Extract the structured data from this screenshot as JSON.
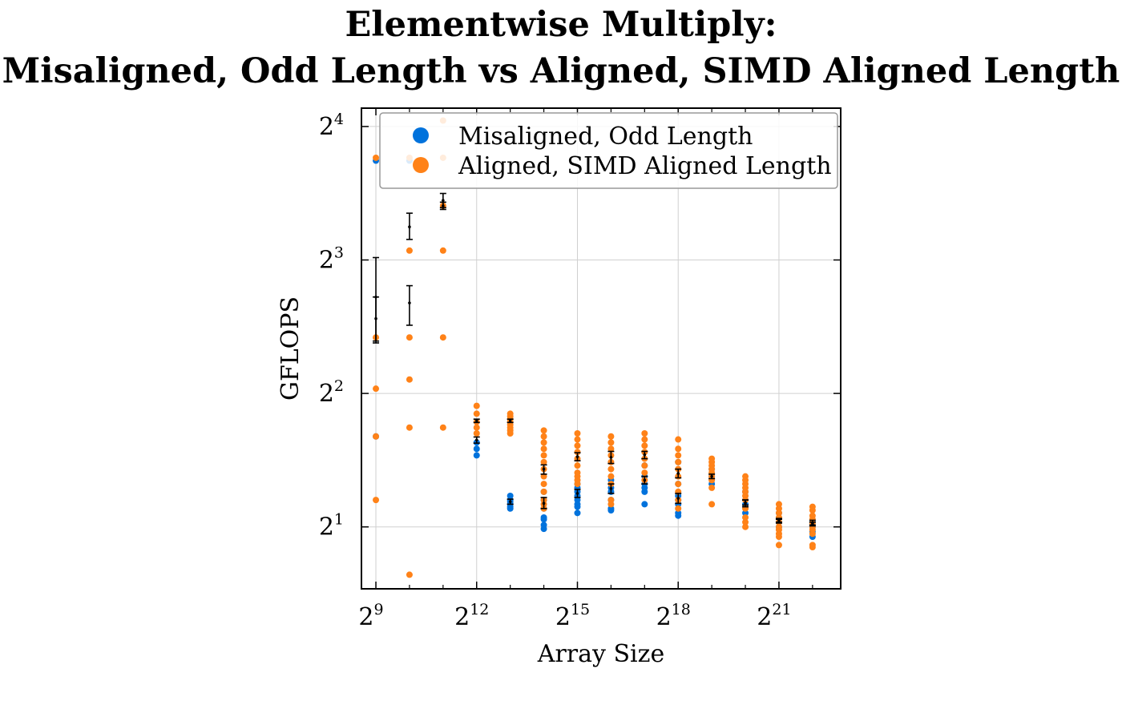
{
  "chart_data": {
    "type": "scatter",
    "title_line1": "Elementwise Multiply:",
    "title_line2": "Misaligned, Odd Length vs Aligned, SIMD Aligned Length",
    "xlabel": "Array Size",
    "ylabel": "GFLOPS",
    "x_scale": "log2",
    "y_scale": "log2",
    "xlim": [
      380,
      7500000
    ],
    "ylim": [
      1.45,
      17.6
    ],
    "grid": true,
    "legend_position": "top-right",
    "x_ticks": [
      {
        "value": 512,
        "base": "2",
        "exp": "9"
      },
      {
        "value": 4096,
        "base": "2",
        "exp": "12"
      },
      {
        "value": 32768,
        "base": "2",
        "exp": "15"
      },
      {
        "value": 262144,
        "base": "2",
        "exp": "18"
      },
      {
        "value": 2097152,
        "base": "2",
        "exp": "21"
      }
    ],
    "y_ticks": [
      {
        "value": 2,
        "base": "2",
        "exp": "1"
      },
      {
        "value": 4,
        "base": "2",
        "exp": "2"
      },
      {
        "value": 8,
        "base": "2",
        "exp": "3"
      },
      {
        "value": 16,
        "base": "2",
        "exp": "4"
      }
    ],
    "x_minor_ticks": [
      1024,
      2048,
      8192,
      16384,
      65536,
      131072,
      524288,
      1048576,
      4194304
    ],
    "series": [
      {
        "name": "Misaligned, Odd Length",
        "color": "#0072DC",
        "points": [
          [
            512,
            13.4
          ],
          [
            512,
            3.2
          ],
          [
            1024,
            13.4
          ],
          [
            4096,
            3.1
          ],
          [
            4096,
            3.0
          ],
          [
            4096,
            2.9
          ],
          [
            8192,
            2.35
          ],
          [
            8192,
            2.3
          ],
          [
            8192,
            2.28
          ],
          [
            8192,
            2.25
          ],
          [
            8192,
            2.22
          ],
          [
            8192,
            2.2
          ],
          [
            16384,
            2.4
          ],
          [
            16384,
            2.3
          ],
          [
            16384,
            2.2
          ],
          [
            16384,
            2.1
          ],
          [
            16384,
            2.08
          ],
          [
            16384,
            2.02
          ],
          [
            16384,
            1.98
          ],
          [
            32768,
            2.5
          ],
          [
            32768,
            2.45
          ],
          [
            32768,
            2.4
          ],
          [
            32768,
            2.35
          ],
          [
            32768,
            2.3
          ],
          [
            32768,
            2.25
          ],
          [
            32768,
            2.22
          ],
          [
            32768,
            2.15
          ],
          [
            65536,
            2.55
          ],
          [
            65536,
            2.45
          ],
          [
            65536,
            2.4
          ],
          [
            65536,
            2.3
          ],
          [
            65536,
            2.2
          ],
          [
            65536,
            2.18
          ],
          [
            131072,
            2.75
          ],
          [
            131072,
            2.6
          ],
          [
            131072,
            2.5
          ],
          [
            131072,
            2.45
          ],
          [
            131072,
            2.4
          ],
          [
            131072,
            2.25
          ],
          [
            262144,
            2.8
          ],
          [
            262144,
            2.5
          ],
          [
            262144,
            2.35
          ],
          [
            262144,
            2.3
          ],
          [
            262144,
            2.25
          ],
          [
            262144,
            2.15
          ],
          [
            262144,
            2.12
          ],
          [
            524288,
            2.7
          ],
          [
            524288,
            2.6
          ],
          [
            524288,
            2.5
          ],
          [
            1048576,
            2.4
          ],
          [
            1048576,
            2.3
          ],
          [
            1048576,
            2.25
          ],
          [
            1048576,
            2.15
          ],
          [
            2097152,
            2.15
          ],
          [
            2097152,
            2.05
          ],
          [
            2097152,
            2.0
          ],
          [
            4194304,
            2.05
          ],
          [
            4194304,
            2.0
          ],
          [
            4194304,
            1.95
          ],
          [
            4194304,
            1.9
          ]
        ],
        "error_bars": [
          [
            512,
            6.6,
            5.2,
            8.1
          ],
          [
            1024,
            6.4,
            5.7,
            7.0
          ],
          [
            2048,
            10.9,
            10.5,
            11.3
          ],
          [
            4096,
            3.14,
            3.09,
            3.19
          ],
          [
            8192,
            2.28,
            2.25,
            2.31
          ],
          [
            16384,
            2.26,
            2.2,
            2.33
          ],
          [
            32768,
            2.38,
            2.33,
            2.43
          ],
          [
            65536,
            2.44,
            2.38,
            2.5
          ],
          [
            131072,
            2.55,
            2.5,
            2.6
          ],
          [
            262144,
            2.32,
            2.26,
            2.38
          ],
          [
            1048576,
            2.26,
            2.22,
            2.3
          ],
          [
            2097152,
            2.06,
            2.04,
            2.08
          ],
          [
            4194304,
            2.04,
            2.02,
            2.07
          ]
        ]
      },
      {
        "name": "Aligned, SIMD Aligned Length",
        "color": "#FF8218",
        "points": [
          [
            512,
            13.6
          ],
          [
            512,
            5.35
          ],
          [
            512,
            3.2
          ],
          [
            512,
            2.3
          ],
          [
            512,
            4.1
          ],
          [
            1024,
            13.6
          ],
          [
            1024,
            8.4
          ],
          [
            1024,
            5.35
          ],
          [
            1024,
            4.3
          ],
          [
            1024,
            3.35
          ],
          [
            1024,
            1.56
          ],
          [
            2048,
            16.5
          ],
          [
            2048,
            13.6
          ],
          [
            2048,
            10.6
          ],
          [
            2048,
            8.4
          ],
          [
            2048,
            5.35
          ],
          [
            2048,
            3.35
          ],
          [
            4096,
            3.75
          ],
          [
            4096,
            3.6
          ],
          [
            4096,
            3.45
          ],
          [
            4096,
            3.35
          ],
          [
            4096,
            3.25
          ],
          [
            8192,
            3.6
          ],
          [
            8192,
            3.55
          ],
          [
            8192,
            3.5
          ],
          [
            8192,
            3.45
          ],
          [
            8192,
            3.4
          ],
          [
            8192,
            3.35
          ],
          [
            8192,
            3.3
          ],
          [
            8192,
            3.25
          ],
          [
            16384,
            3.3
          ],
          [
            16384,
            3.2
          ],
          [
            16384,
            3.1
          ],
          [
            16384,
            3.0
          ],
          [
            16384,
            2.9
          ],
          [
            16384,
            2.8
          ],
          [
            16384,
            2.7
          ],
          [
            16384,
            2.6
          ],
          [
            16384,
            2.5
          ],
          [
            16384,
            2.4
          ],
          [
            16384,
            2.3
          ],
          [
            16384,
            2.25
          ],
          [
            16384,
            2.2
          ],
          [
            32768,
            3.25
          ],
          [
            32768,
            3.15
          ],
          [
            32768,
            3.05
          ],
          [
            32768,
            2.95
          ],
          [
            32768,
            2.85
          ],
          [
            32768,
            2.75
          ],
          [
            32768,
            2.65
          ],
          [
            32768,
            2.6
          ],
          [
            32768,
            2.55
          ],
          [
            32768,
            2.5
          ],
          [
            65536,
            3.2
          ],
          [
            65536,
            3.1
          ],
          [
            65536,
            3.0
          ],
          [
            65536,
            2.9
          ],
          [
            65536,
            2.8
          ],
          [
            65536,
            2.7
          ],
          [
            65536,
            2.6
          ],
          [
            65536,
            2.5
          ],
          [
            65536,
            2.3
          ],
          [
            65536,
            2.25
          ],
          [
            131072,
            3.25
          ],
          [
            131072,
            3.15
          ],
          [
            131072,
            3.05
          ],
          [
            131072,
            2.95
          ],
          [
            131072,
            2.85
          ],
          [
            131072,
            2.75
          ],
          [
            131072,
            2.65
          ],
          [
            131072,
            2.55
          ],
          [
            262144,
            3.15
          ],
          [
            262144,
            3.0
          ],
          [
            262144,
            2.9
          ],
          [
            262144,
            2.8
          ],
          [
            262144,
            2.7
          ],
          [
            262144,
            2.6
          ],
          [
            262144,
            2.5
          ],
          [
            262144,
            2.4
          ],
          [
            262144,
            2.3
          ],
          [
            262144,
            2.2
          ],
          [
            524288,
            2.85
          ],
          [
            524288,
            2.8
          ],
          [
            524288,
            2.75
          ],
          [
            524288,
            2.7
          ],
          [
            524288,
            2.65
          ],
          [
            524288,
            2.6
          ],
          [
            524288,
            2.55
          ],
          [
            524288,
            2.45
          ],
          [
            524288,
            2.25
          ],
          [
            1048576,
            2.6
          ],
          [
            1048576,
            2.55
          ],
          [
            1048576,
            2.5
          ],
          [
            1048576,
            2.45
          ],
          [
            1048576,
            2.4
          ],
          [
            1048576,
            2.35
          ],
          [
            1048576,
            2.3
          ],
          [
            1048576,
            2.2
          ],
          [
            1048576,
            2.1
          ],
          [
            1048576,
            2.05
          ],
          [
            1048576,
            2.0
          ],
          [
            2097152,
            2.25
          ],
          [
            2097152,
            2.2
          ],
          [
            2097152,
            2.15
          ],
          [
            2097152,
            2.1
          ],
          [
            2097152,
            2.05
          ],
          [
            2097152,
            2.0
          ],
          [
            2097152,
            1.97
          ],
          [
            2097152,
            1.93
          ],
          [
            2097152,
            1.9
          ],
          [
            2097152,
            1.82
          ],
          [
            4194304,
            2.22
          ],
          [
            4194304,
            2.18
          ],
          [
            4194304,
            2.12
          ],
          [
            4194304,
            2.08
          ],
          [
            4194304,
            2.04
          ],
          [
            4194304,
            2.0
          ],
          [
            4194304,
            1.97
          ],
          [
            4194304,
            1.93
          ],
          [
            4194304,
            1.82
          ],
          [
            4194304,
            1.8
          ]
        ],
        "error_bars": [
          [
            512,
            5.9,
            5.25,
            6.6
          ],
          [
            1024,
            9.5,
            8.9,
            10.2
          ],
          [
            2048,
            10.6,
            10.4,
            10.8
          ],
          [
            4096,
            3.47,
            3.44,
            3.5
          ],
          [
            8192,
            3.47,
            3.44,
            3.5
          ],
          [
            16384,
            2.7,
            2.63,
            2.76
          ],
          [
            32768,
            2.88,
            2.82,
            2.94
          ],
          [
            65536,
            2.87,
            2.78,
            2.96
          ],
          [
            131072,
            2.91,
            2.85,
            2.96
          ],
          [
            262144,
            2.64,
            2.58,
            2.7
          ],
          [
            524288,
            2.6,
            2.57,
            2.63
          ],
          [
            1048576,
            2.27,
            2.24,
            2.3
          ],
          [
            2097152,
            2.07,
            2.05,
            2.09
          ],
          [
            4194304,
            2.03,
            2.01,
            2.05
          ]
        ]
      }
    ]
  }
}
